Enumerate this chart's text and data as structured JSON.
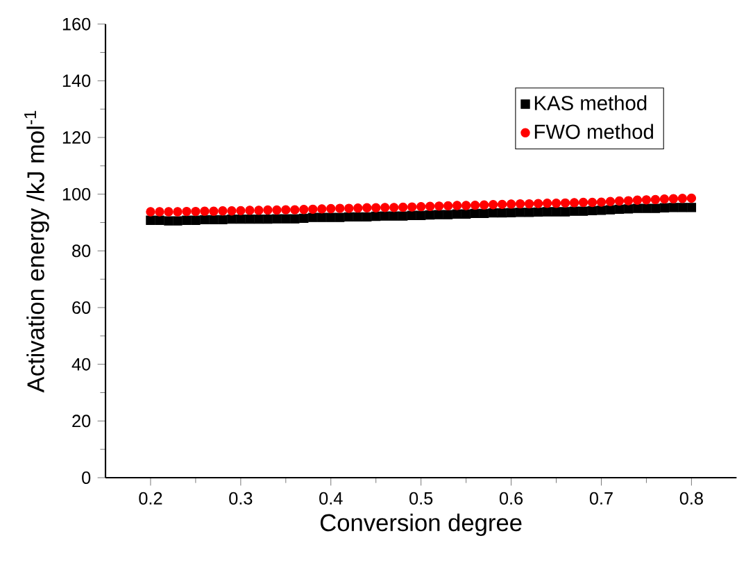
{
  "chart_data": {
    "type": "scatter",
    "xlabel": "Conversion degree",
    "ylabel": "Activation energy /kJ mol$^{-1}$",
    "x": [
      0.2,
      0.21,
      0.22,
      0.23,
      0.24,
      0.25,
      0.26,
      0.27,
      0.28,
      0.29,
      0.3,
      0.31,
      0.32,
      0.33,
      0.34,
      0.35,
      0.36,
      0.37,
      0.38,
      0.39,
      0.4,
      0.41,
      0.42,
      0.43,
      0.44,
      0.45,
      0.46,
      0.47,
      0.48,
      0.49,
      0.5,
      0.51,
      0.52,
      0.53,
      0.54,
      0.55,
      0.56,
      0.57,
      0.58,
      0.59,
      0.6,
      0.61,
      0.62,
      0.63,
      0.64,
      0.65,
      0.66,
      0.67,
      0.68,
      0.69,
      0.7,
      0.71,
      0.72,
      0.73,
      0.74,
      0.75,
      0.76,
      0.77,
      0.78,
      0.79,
      0.8
    ],
    "series": [
      {
        "name": "KAS  method",
        "color": "#000000",
        "marker": "square",
        "values": [
          90.8,
          90.8,
          90.6,
          90.6,
          90.8,
          90.8,
          91,
          91,
          91,
          91.2,
          91.2,
          91.2,
          91.2,
          91.2,
          91.3,
          91.3,
          91.3,
          91.5,
          91.8,
          91.8,
          91.8,
          91.8,
          92,
          92,
          92,
          92.2,
          92.3,
          92.3,
          92.3,
          92.5,
          92.5,
          92.7,
          92.8,
          92.8,
          93,
          93,
          93.2,
          93.2,
          93.4,
          93.4,
          93.5,
          93.6,
          93.6,
          93.7,
          93.8,
          93.8,
          93.8,
          94,
          94,
          94.2,
          94.3,
          94.5,
          94.7,
          94.8,
          95,
          95,
          95,
          95.2,
          95.3,
          95.3,
          95.3
        ]
      },
      {
        "name": "FWO method",
        "color": "#ff0000",
        "marker": "circle",
        "values": [
          93.8,
          93.8,
          93.8,
          93.8,
          93.9,
          93.9,
          94,
          94,
          94.1,
          94.1,
          94.2,
          94.3,
          94.3,
          94.4,
          94.4,
          94.5,
          94.5,
          94.6,
          94.7,
          94.8,
          94.9,
          95,
          95,
          95.1,
          95.2,
          95.2,
          95.3,
          95.3,
          95.4,
          95.5,
          95.6,
          95.7,
          95.8,
          95.9,
          96,
          96,
          96.1,
          96.2,
          96.3,
          96.4,
          96.5,
          96.6,
          96.6,
          96.7,
          96.8,
          96.8,
          96.9,
          97,
          97.1,
          97.1,
          97.2,
          97.4,
          97.6,
          97.7,
          97.9,
          98,
          98.1,
          98.3,
          98.4,
          98.5,
          98.6
        ]
      }
    ],
    "xlim": [
      0.15,
      0.85
    ],
    "xticks": [
      0.2,
      0.3,
      0.4,
      0.5,
      0.6,
      0.7,
      0.8
    ],
    "ylim": [
      0,
      160
    ],
    "yticks": [
      0,
      20,
      40,
      60,
      80,
      100,
      120,
      140,
      160
    ],
    "legend": "top right",
    "grid": false
  }
}
